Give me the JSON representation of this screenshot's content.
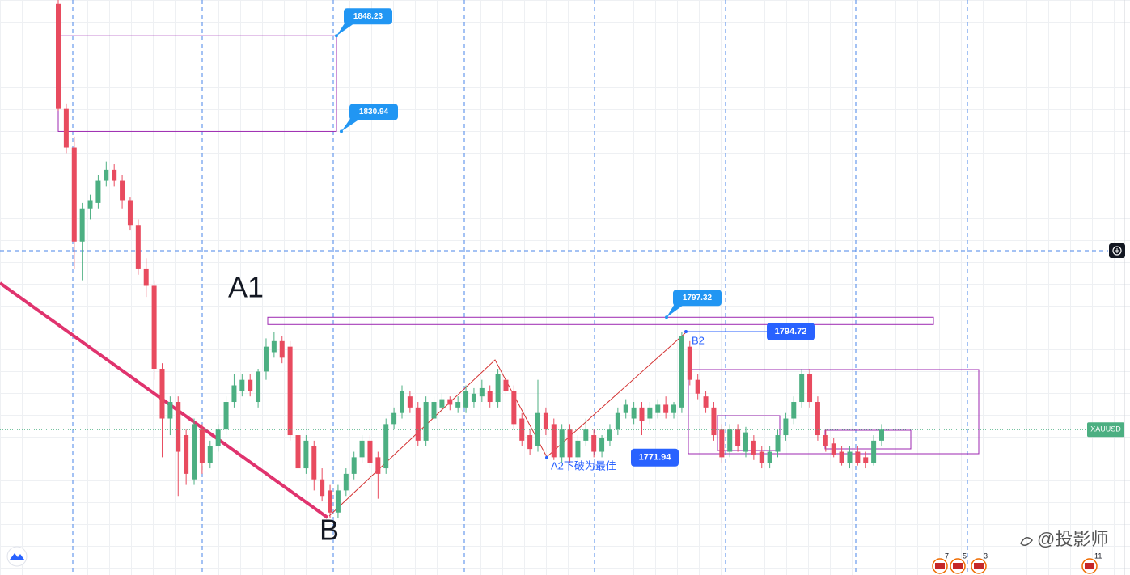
{
  "chart_data": {
    "type": "candlestick",
    "symbol": "XAUUSD",
    "ylim": [
      1750.7,
      1854.7
    ],
    "up_color": "#4caf82",
    "down_color": "#e84b5f",
    "candles": [
      [
        1854,
        1855,
        1834.7,
        1835
      ],
      [
        1835,
        1836,
        1827,
        1828
      ],
      [
        1828,
        1830,
        1806,
        1811
      ],
      [
        1811,
        1818,
        1804,
        1817
      ],
      [
        1817,
        1819.5,
        1815,
        1818.5
      ],
      [
        1818,
        1823,
        1817,
        1822
      ],
      [
        1822,
        1825.5,
        1821,
        1824
      ],
      [
        1824,
        1825,
        1821,
        1822
      ],
      [
        1822,
        1823,
        1817,
        1818.5
      ],
      [
        1818.5,
        1819,
        1813,
        1814
      ],
      [
        1814,
        1815,
        1805,
        1806
      ],
      [
        1806,
        1808,
        1801,
        1803
      ],
      [
        1803,
        1804,
        1786,
        1788
      ],
      [
        1788,
        1789,
        1772,
        1779
      ],
      [
        1779,
        1783,
        1776,
        1782
      ],
      [
        1782,
        1783,
        1765,
        1773
      ],
      [
        1776,
        1777,
        1767,
        1769
      ],
      [
        1768,
        1779,
        1767,
        1778
      ],
      [
        1777,
        1778,
        1769,
        1771
      ],
      [
        1771,
        1775,
        1770,
        1774
      ],
      [
        1774,
        1778,
        1773,
        1777
      ],
      [
        1777,
        1783,
        1776,
        1782
      ],
      [
        1782,
        1787,
        1781,
        1785
      ],
      [
        1784,
        1787,
        1783,
        1786
      ],
      [
        1786,
        1787,
        1783,
        1784
      ],
      [
        1782,
        1788,
        1781,
        1787.5
      ],
      [
        1787.5,
        1793.5,
        1786,
        1792
      ],
      [
        1791,
        1794.7,
        1790,
        1793
      ],
      [
        1793,
        1794,
        1789,
        1790
      ],
      [
        1792,
        1793,
        1775,
        1776
      ],
      [
        1776,
        1777,
        1768,
        1770
      ],
      [
        1770,
        1776,
        1769,
        1775
      ],
      [
        1774,
        1775,
        1766,
        1768
      ],
      [
        1768,
        1770,
        1764,
        1765
      ],
      [
        1766,
        1767,
        1761,
        1762
      ],
      [
        1762,
        1767,
        1761,
        1766
      ],
      [
        1766,
        1770,
        1765,
        1769
      ],
      [
        1769,
        1773,
        1768,
        1772
      ],
      [
        1772,
        1776,
        1771,
        1775
      ],
      [
        1775,
        1776,
        1770,
        1771
      ],
      [
        1772,
        1773,
        1764.5,
        1769
      ],
      [
        1770,
        1779,
        1769,
        1778
      ],
      [
        1778,
        1781,
        1777,
        1780
      ],
      [
        1780,
        1785,
        1779,
        1784
      ],
      [
        1783,
        1784,
        1780,
        1781
      ],
      [
        1781,
        1782,
        1774,
        1775
      ],
      [
        1775,
        1783,
        1774,
        1782
      ],
      [
        1779,
        1783,
        1778,
        1782
      ],
      [
        1781,
        1783.5,
        1780,
        1782.5
      ],
      [
        1782.5,
        1783,
        1780.5,
        1781.5
      ],
      [
        1781,
        1783,
        1780,
        1782
      ],
      [
        1781,
        1785,
        1780,
        1784
      ],
      [
        1782,
        1784.5,
        1781,
        1783.5
      ],
      [
        1783,
        1786,
        1782,
        1784.5
      ],
      [
        1784,
        1785,
        1781,
        1782
      ],
      [
        1782,
        1788,
        1781,
        1787
      ],
      [
        1786,
        1787,
        1783,
        1784
      ],
      [
        1784,
        1785,
        1777,
        1778
      ],
      [
        1779,
        1780,
        1774,
        1775
      ],
      [
        1776,
        1777,
        1772.5,
        1773.5
      ],
      [
        1774,
        1786,
        1773,
        1780
      ],
      [
        1780,
        1781,
        1776,
        1777
      ],
      [
        1778,
        1779,
        1771.5,
        1772
      ],
      [
        1772,
        1778,
        1771,
        1777
      ],
      [
        1777,
        1778,
        1771,
        1772
      ],
      [
        1772,
        1776,
        1771,
        1775
      ],
      [
        1775,
        1779,
        1774,
        1777
      ],
      [
        1776,
        1777,
        1772,
        1773
      ],
      [
        1773,
        1776,
        1772,
        1775.5
      ],
      [
        1775,
        1778,
        1774,
        1777
      ],
      [
        1777,
        1781,
        1776,
        1780
      ],
      [
        1780,
        1782.5,
        1779,
        1781.5
      ],
      [
        1779,
        1782,
        1778,
        1781
      ],
      [
        1781,
        1782,
        1776,
        1778.5
      ],
      [
        1779,
        1782,
        1778,
        1781
      ],
      [
        1780,
        1782.5,
        1779,
        1781.5
      ],
      [
        1781.5,
        1783,
        1779,
        1780
      ],
      [
        1780,
        1782,
        1779,
        1781.5
      ],
      [
        1781,
        1794.72,
        1780,
        1794
      ],
      [
        1792,
        1793,
        1785,
        1786
      ],
      [
        1786,
        1787,
        1782.5,
        1783.5
      ],
      [
        1783,
        1784,
        1780,
        1781
      ],
      [
        1781,
        1782,
        1775,
        1776
      ],
      [
        1777,
        1778,
        1771,
        1772
      ],
      [
        1773,
        1778,
        1772,
        1777
      ],
      [
        1777,
        1778,
        1773,
        1774
      ],
      [
        1773,
        1777.5,
        1772,
        1776.5
      ],
      [
        1775,
        1776,
        1771.5,
        1772.5
      ],
      [
        1773,
        1774,
        1770,
        1771
      ],
      [
        1771,
        1774,
        1770,
        1773
      ],
      [
        1773,
        1777,
        1772,
        1776
      ],
      [
        1776,
        1780,
        1775,
        1779
      ],
      [
        1779,
        1783,
        1778,
        1782
      ],
      [
        1782,
        1788,
        1781,
        1787
      ],
      [
        1787,
        1788,
        1781,
        1782
      ],
      [
        1782,
        1783,
        1775,
        1776
      ],
      [
        1776,
        1777,
        1773,
        1774
      ],
      [
        1774.5,
        1775.5,
        1772,
        1772.5
      ],
      [
        1773,
        1774,
        1770.5,
        1771
      ],
      [
        1771,
        1774,
        1770,
        1773
      ],
      [
        1773,
        1774,
        1770.5,
        1771
      ],
      [
        1772,
        1773,
        1770,
        1771
      ],
      [
        1771,
        1776,
        1770.5,
        1775
      ],
      [
        1775,
        1778,
        1774,
        1777
      ]
    ],
    "callouts": [
      1848.23,
      1830.94,
      1797.32
    ],
    "price_tags": [
      1794.72,
      1771.94
    ],
    "annotations": [
      "A1",
      "B",
      "B2",
      "A2下破为最佳"
    ],
    "event_counts": [
      7,
      5,
      3,
      11
    ],
    "watermark": "@投影师"
  }
}
